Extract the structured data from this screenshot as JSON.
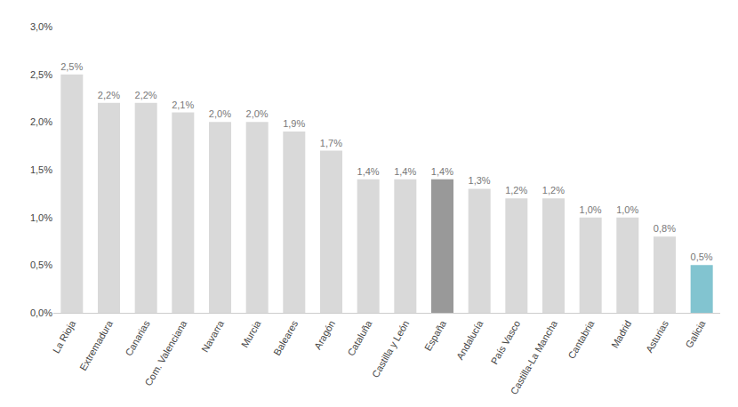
{
  "chart_data": {
    "type": "bar",
    "categories": [
      "La Rioja",
      "Extremadura",
      "Canarias",
      "Com. Valenciana",
      "Navarra",
      "Murcia",
      "Baleares",
      "Aragón",
      "Cataluña",
      "Castilla y León",
      "España",
      "Andalucía",
      "País Vasco",
      "Castilla-La Mancha",
      "Cantabria",
      "Madrid",
      "Asturias",
      "Galicia"
    ],
    "values": [
      2.5,
      2.2,
      2.2,
      2.1,
      2.0,
      2.0,
      1.9,
      1.7,
      1.4,
      1.4,
      1.4,
      1.3,
      1.2,
      1.2,
      1.0,
      1.0,
      0.8,
      0.5
    ],
    "value_labels": [
      "2,5%",
      "2,2%",
      "2,2%",
      "2,1%",
      "2,0%",
      "2,0%",
      "1,9%",
      "1,7%",
      "1,4%",
      "1,4%",
      "1,4%",
      "1,3%",
      "1,2%",
      "1,2%",
      "1,0%",
      "1,0%",
      "0,8%",
      "0,5%"
    ],
    "data_labels": true,
    "colors": [
      "#d9d9d9",
      "#d9d9d9",
      "#d9d9d9",
      "#d9d9d9",
      "#d9d9d9",
      "#d9d9d9",
      "#d9d9d9",
      "#d9d9d9",
      "#d9d9d9",
      "#d9d9d9",
      "#999999",
      "#d9d9d9",
      "#d9d9d9",
      "#d9d9d9",
      "#d9d9d9",
      "#d9d9d9",
      "#d9d9d9",
      "#82c4d0"
    ],
    "ylim": [
      0,
      3.0
    ],
    "yticks": [
      {
        "value": 0.0,
        "label": "0,0%"
      },
      {
        "value": 0.5,
        "label": "0,5%"
      },
      {
        "value": 1.0,
        "label": "1,0%"
      },
      {
        "value": 1.5,
        "label": "1,5%"
      },
      {
        "value": 2.0,
        "label": "2,0%"
      },
      {
        "value": 2.5,
        "label": "2,5%"
      },
      {
        "value": 3.0,
        "label": "3,0%"
      }
    ],
    "grid": false
  }
}
